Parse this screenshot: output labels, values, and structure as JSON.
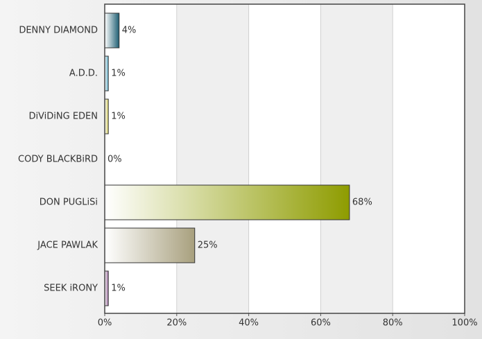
{
  "chart_data": {
    "type": "hbar",
    "categories": [
      "DENNY DIAMOND",
      "A.D.D.",
      "DiViDiNG EDEN",
      "CODY BLACKBiRD",
      "DON PUGLiSi",
      "JACE PAWLAK",
      "SEEK iRONY"
    ],
    "values": [
      4,
      1,
      1,
      0,
      68,
      25,
      1
    ],
    "value_labels": [
      "4%",
      "1%",
      "1%",
      "0%",
      "68%",
      "25%",
      "1%"
    ],
    "colors": [
      "#1f5f73",
      "#5aaac4",
      "#d4cc60",
      "#888888",
      "#8e9c00",
      "#a8a07e",
      "#9a6a9c"
    ],
    "xlim": [
      0,
      100
    ],
    "xticks": [
      {
        "value": 0,
        "label": "0%"
      },
      {
        "value": 20,
        "label": "20%"
      },
      {
        "value": 40,
        "label": "40%"
      },
      {
        "value": 60,
        "label": "60%"
      },
      {
        "value": 80,
        "label": "80%"
      },
      {
        "value": 100,
        "label": "100%"
      }
    ],
    "grid": true
  }
}
